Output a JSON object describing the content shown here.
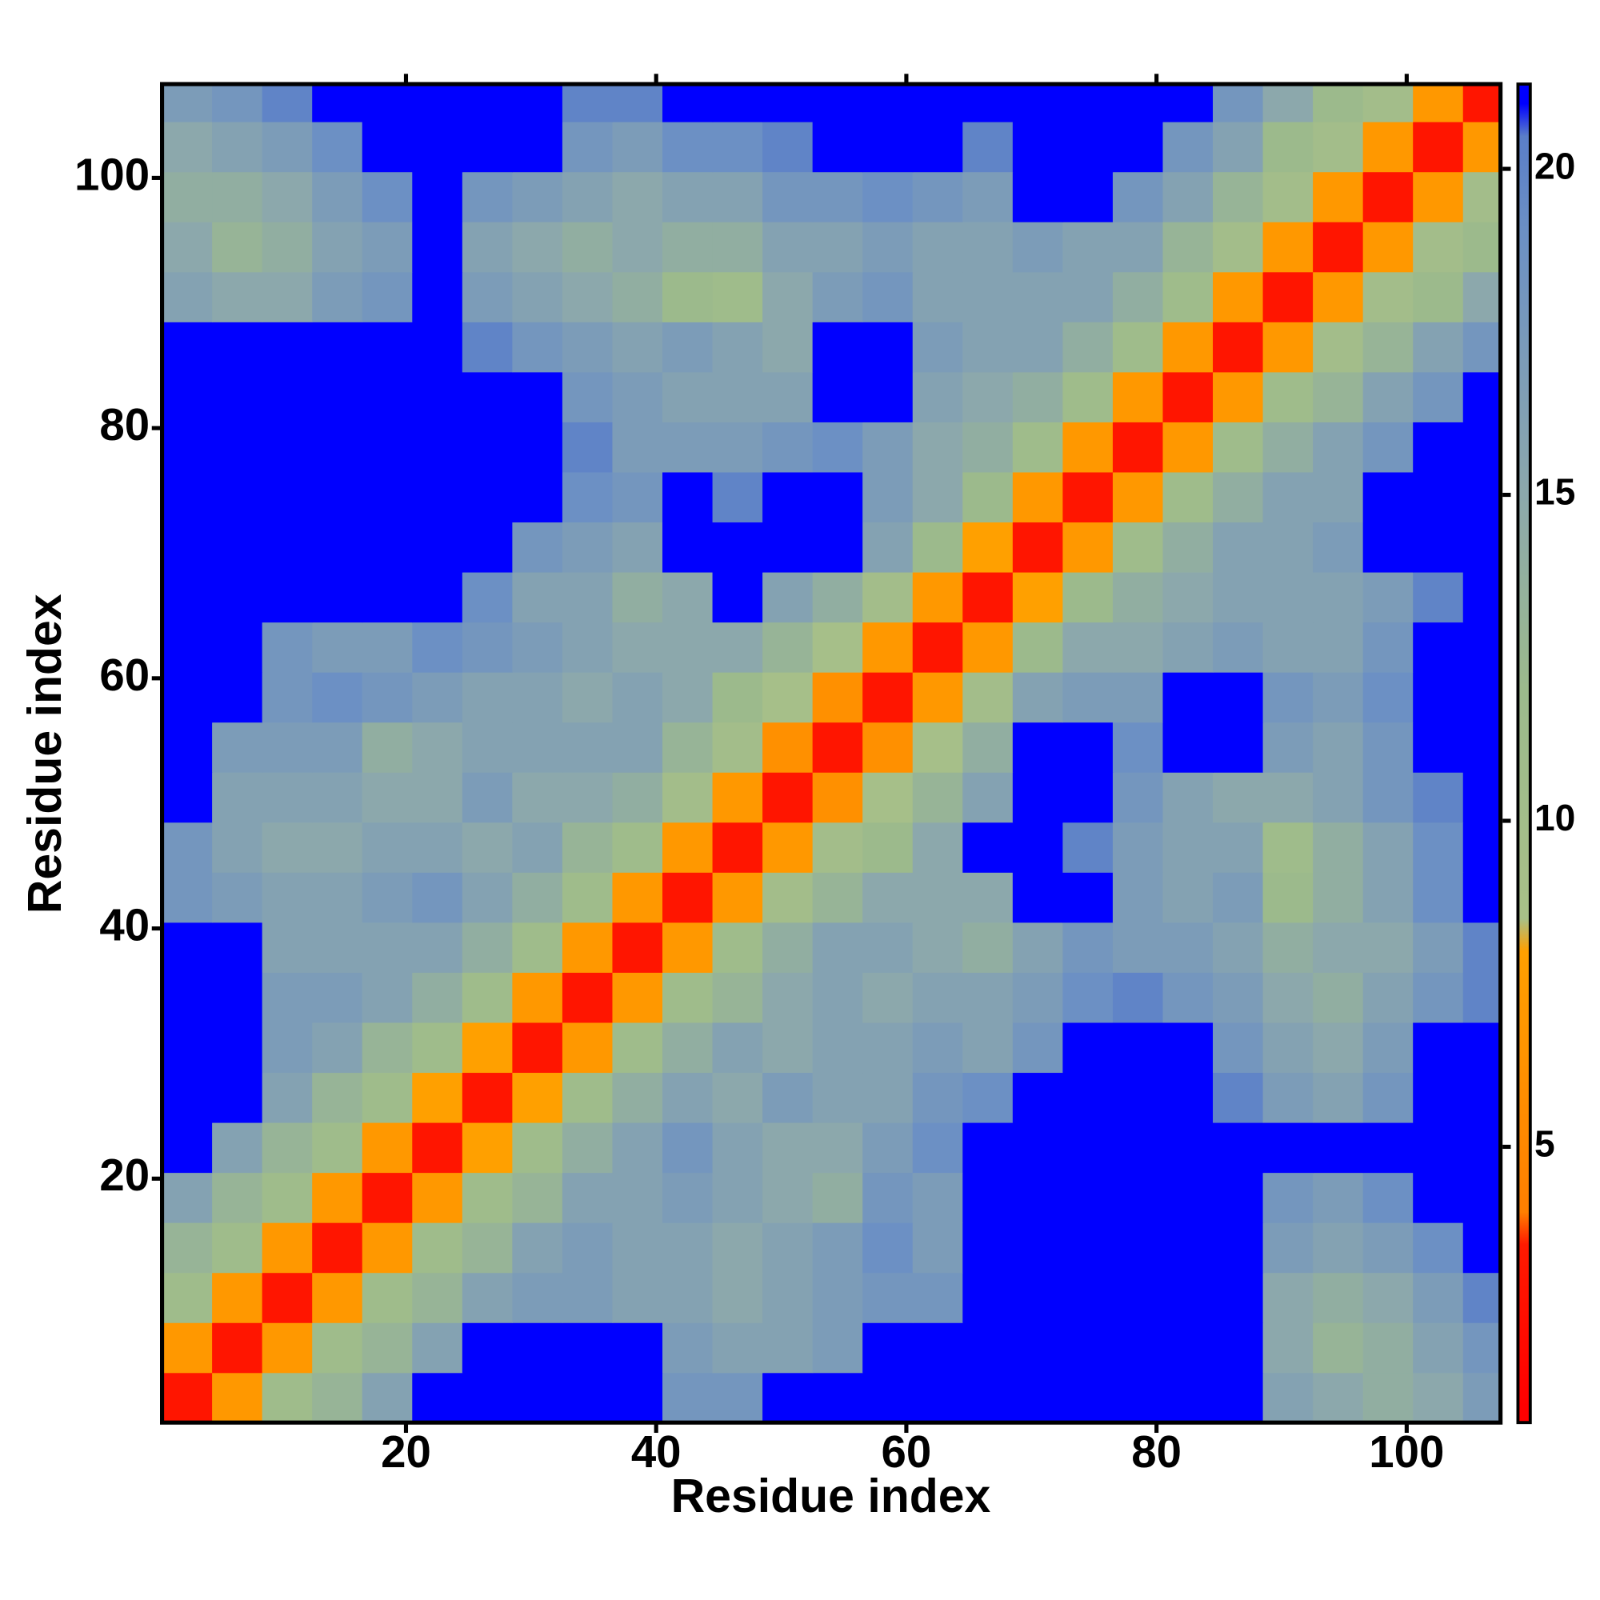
{
  "chart_data": {
    "type": "heatmap",
    "x_label": "Residue index",
    "y_label": "Residue index",
    "xbins": [
      0.5,
      4.5,
      8.5,
      12.5,
      16.5,
      20.5,
      24.5,
      28.5,
      32.5,
      36.5,
      40.5,
      44.5,
      48.5,
      52.5,
      56.5,
      60.5,
      64.5,
      68.5,
      72.5,
      76.5,
      80.5,
      84.5,
      88.5,
      92.5,
      96.5,
      100.5,
      104.5,
      107.5
    ],
    "ybins": [
      0.5,
      4.5,
      8.5,
      12.5,
      16.5,
      20.5,
      24.5,
      28.5,
      32.5,
      36.5,
      40.5,
      44.5,
      48.5,
      52.5,
      56.5,
      60.5,
      64.5,
      68.5,
      72.5,
      76.5,
      80.5,
      84.5,
      88.5,
      92.5,
      96.5,
      100.5,
      104.5,
      107.5
    ],
    "xlim": [
      0.5,
      107.5
    ],
    "ylim": [
      0.5,
      107.5
    ],
    "xticks": [
      20,
      40,
      60,
      80,
      100
    ],
    "yticks": [
      20,
      40,
      60,
      80,
      100
    ],
    "colorbar_lim": [
      0.77,
      21.3
    ],
    "colorbar_ticks": [
      5,
      10,
      15,
      20
    ],
    "color_stops": [
      {
        "value": 1,
        "color": "#ff0000"
      },
      {
        "value": 3.5,
        "color": "#ff1a00"
      },
      {
        "value": 4,
        "color": "#ff7f00"
      },
      {
        "value": 8,
        "color": "#ffa000"
      },
      {
        "value": 8.5,
        "color": "#a8c088"
      },
      {
        "value": 12,
        "color": "#9cba8c"
      },
      {
        "value": 15,
        "color": "#8ca8ac"
      },
      {
        "value": 19,
        "color": "#6c90c4"
      },
      {
        "value": 20.5,
        "color": "#5a7ec8"
      },
      {
        "value": 21,
        "color": "#0000ff"
      }
    ],
    "z": [
      [
        3,
        7,
        11,
        13,
        16,
        22,
        22,
        22,
        22,
        22,
        18,
        18,
        22,
        22,
        22,
        22,
        22,
        22,
        22,
        22,
        22,
        22,
        16,
        15,
        14,
        15,
        17
      ],
      [
        7,
        3,
        7,
        11,
        13,
        16,
        22,
        22,
        22,
        22,
        17,
        16,
        16,
        17,
        22,
        22,
        22,
        22,
        22,
        22,
        22,
        22,
        15,
        13,
        14,
        16,
        18
      ],
      [
        11,
        7,
        3,
        7,
        11,
        13,
        16,
        17,
        17,
        16,
        16,
        15,
        16,
        17,
        18,
        18,
        22,
        22,
        22,
        22,
        22,
        22,
        15,
        14,
        15,
        17,
        20
      ],
      [
        13,
        11,
        7,
        3,
        7,
        11,
        13,
        16,
        17,
        16,
        16,
        15,
        16,
        17,
        19,
        17,
        22,
        22,
        22,
        22,
        22,
        22,
        17,
        16,
        17,
        19,
        22
      ],
      [
        16,
        13,
        11,
        7,
        3,
        7,
        11,
        13,
        16,
        16,
        17,
        16,
        15,
        14,
        18,
        17,
        22,
        22,
        22,
        22,
        22,
        22,
        18,
        17,
        19,
        22,
        22
      ],
      [
        22,
        16,
        13,
        11,
        7,
        3,
        8,
        11,
        14,
        16,
        18,
        16,
        15,
        15,
        17,
        19,
        22,
        22,
        22,
        22,
        22,
        22,
        21,
        21,
        21,
        21,
        21
      ],
      [
        22,
        22,
        16,
        13,
        11,
        8,
        3,
        8,
        11,
        14,
        16,
        15,
        17,
        16,
        16,
        18,
        19,
        22,
        22,
        22,
        22,
        20,
        17,
        16,
        18,
        22,
        22
      ],
      [
        22,
        22,
        17,
        16,
        13,
        11,
        8,
        3,
        7,
        11,
        14,
        16,
        15,
        16,
        16,
        17,
        16,
        18,
        22,
        22,
        22,
        18,
        16,
        15,
        17,
        22,
        22
      ],
      [
        22,
        22,
        17,
        17,
        16,
        14,
        11,
        7,
        3,
        7,
        11,
        13,
        15,
        16,
        15,
        16,
        16,
        17,
        19,
        20,
        18,
        17,
        15,
        14,
        16,
        18,
        20
      ],
      [
        22,
        22,
        16,
        16,
        16,
        16,
        14,
        11,
        7,
        3,
        7,
        11,
        14,
        16,
        16,
        15,
        14,
        16,
        18,
        17,
        17,
        16,
        14,
        15,
        15,
        17,
        20
      ],
      [
        18,
        17,
        16,
        16,
        17,
        18,
        16,
        14,
        11,
        7,
        3,
        7,
        10,
        13,
        15,
        15,
        15,
        22,
        22,
        17,
        16,
        17,
        12,
        14,
        16,
        19,
        22
      ],
      [
        18,
        16,
        15,
        15,
        16,
        16,
        15,
        16,
        13,
        11,
        7,
        3,
        7,
        10,
        12,
        15,
        22,
        22,
        20,
        17,
        16,
        16,
        11,
        14,
        16,
        19,
        22
      ],
      [
        22,
        16,
        16,
        16,
        15,
        15,
        17,
        15,
        15,
        14,
        10,
        7,
        3,
        6,
        9,
        13,
        16,
        22,
        22,
        18,
        16,
        15,
        15,
        16,
        18,
        20,
        22
      ],
      [
        22,
        17,
        17,
        17,
        14,
        15,
        16,
        16,
        16,
        16,
        13,
        10,
        6,
        3,
        6,
        9,
        14,
        22,
        22,
        19,
        22,
        22,
        17,
        16,
        18,
        22,
        22
      ],
      [
        22,
        22,
        18,
        19,
        18,
        17,
        16,
        16,
        15,
        16,
        15,
        12,
        9,
        6,
        3,
        7,
        10,
        16,
        17,
        17,
        22,
        22,
        18,
        17,
        19,
        22,
        22
      ],
      [
        22,
        22,
        18,
        17,
        17,
        19,
        18,
        17,
        16,
        15,
        15,
        15,
        13,
        9,
        7,
        3,
        7,
        12,
        15,
        15,
        16,
        17,
        16,
        16,
        18,
        22,
        22
      ],
      [
        22,
        22,
        22,
        22,
        22,
        22,
        19,
        16,
        16,
        14,
        15,
        22,
        16,
        14,
        10,
        7,
        3,
        8,
        12,
        14,
        15,
        16,
        16,
        16,
        17,
        20,
        22
      ],
      [
        22,
        22,
        22,
        22,
        22,
        22,
        22,
        18,
        17,
        16,
        22,
        22,
        22,
        22,
        16,
        12,
        8,
        3,
        7,
        11,
        14,
        16,
        16,
        17,
        22,
        22,
        22
      ],
      [
        22,
        22,
        22,
        22,
        22,
        22,
        22,
        22,
        19,
        18,
        22,
        20,
        22,
        22,
        17,
        15,
        12,
        7,
        3,
        7,
        11,
        14,
        16,
        16,
        22,
        22,
        22
      ],
      [
        22,
        22,
        22,
        22,
        22,
        22,
        22,
        22,
        20,
        17,
        17,
        17,
        18,
        19,
        17,
        15,
        14,
        11,
        7,
        3,
        7,
        11,
        14,
        16,
        18,
        22,
        22
      ],
      [
        22,
        22,
        22,
        22,
        22,
        22,
        22,
        22,
        18,
        17,
        16,
        16,
        16,
        22,
        22,
        16,
        15,
        14,
        11,
        7,
        3,
        7,
        11,
        13,
        16,
        18,
        22
      ],
      [
        22,
        22,
        22,
        22,
        22,
        22,
        20,
        18,
        17,
        16,
        17,
        16,
        15,
        22,
        22,
        17,
        16,
        16,
        14,
        11,
        7,
        3,
        7,
        10,
        13,
        16,
        18
      ],
      [
        16,
        15,
        15,
        17,
        18,
        21,
        17,
        16,
        15,
        14,
        12,
        11,
        15,
        17,
        18,
        16,
        16,
        16,
        16,
        14,
        11,
        7,
        3,
        7,
        10,
        12,
        15
      ],
      [
        15,
        13,
        14,
        16,
        17,
        21,
        16,
        15,
        14,
        15,
        14,
        14,
        16,
        16,
        17,
        16,
        16,
        17,
        16,
        16,
        13,
        10,
        7,
        3,
        7,
        10,
        12
      ],
      [
        14,
        14,
        15,
        17,
        19,
        21,
        18,
        17,
        16,
        15,
        16,
        16,
        18,
        18,
        19,
        18,
        17,
        22,
        22,
        18,
        16,
        13,
        10,
        7,
        3,
        7,
        10
      ],
      [
        15,
        16,
        17,
        19,
        22,
        21,
        22,
        22,
        18,
        17,
        19,
        19,
        20,
        22,
        22,
        22,
        20,
        22,
        22,
        22,
        18,
        16,
        12,
        10,
        7,
        3,
        7
      ],
      [
        17,
        18,
        20,
        22,
        22,
        21,
        22,
        22,
        20,
        20,
        22,
        22,
        22,
        22,
        22,
        22,
        22,
        22,
        22,
        22,
        22,
        18,
        15,
        12,
        10,
        7,
        3
      ]
    ]
  }
}
